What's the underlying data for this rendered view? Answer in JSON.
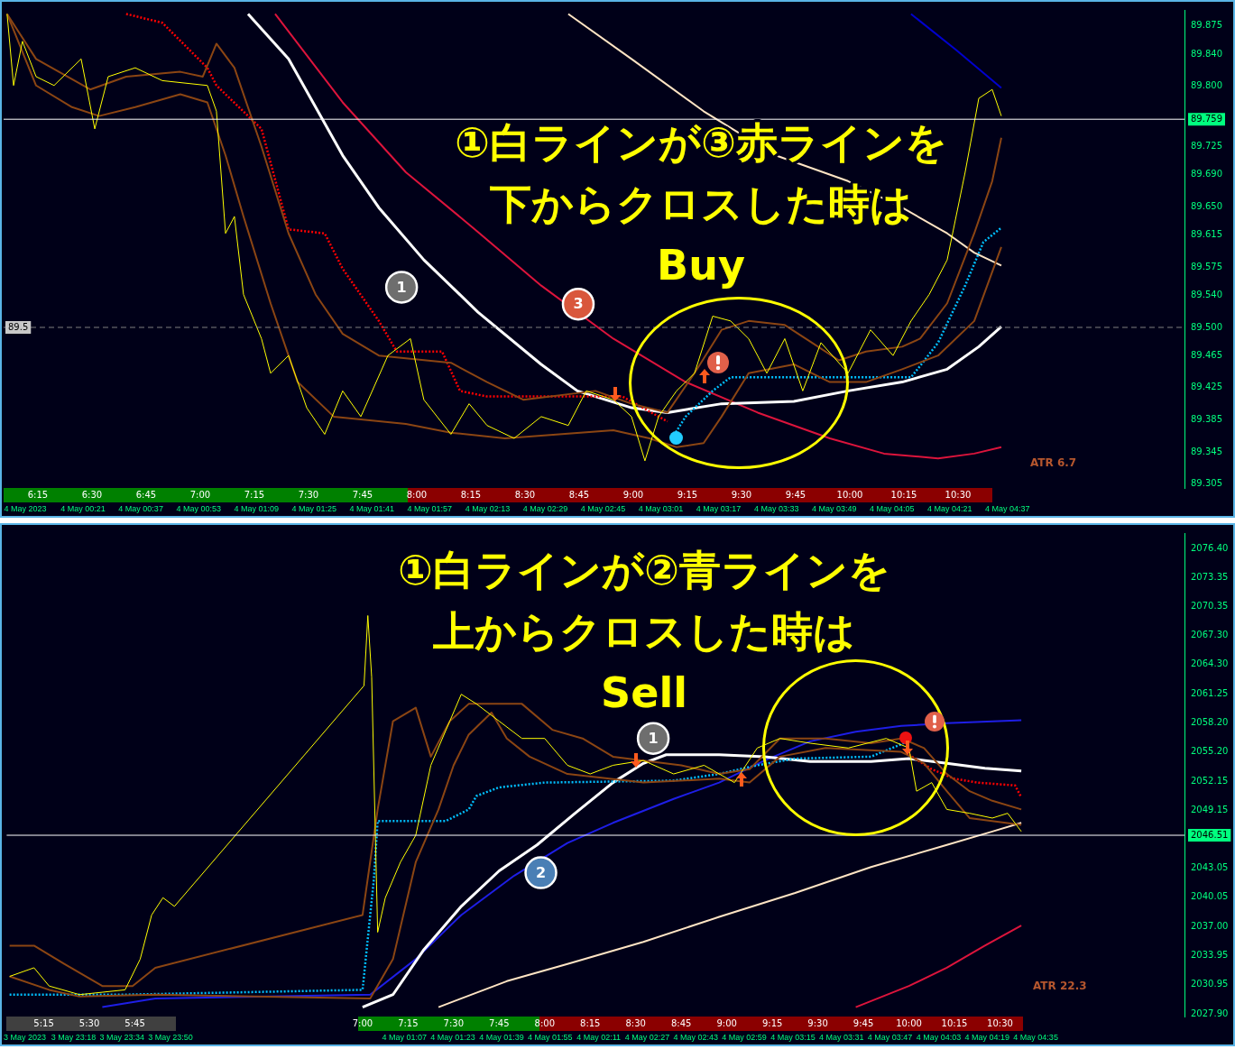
{
  "chart_data": [
    {
      "type": "line",
      "legend": false,
      "grid": false,
      "xlim": [
        6.092,
        11.546
      ],
      "xticks": [
        {
          "value": 6.25,
          "label": "6:15"
        },
        {
          "value": 6.5,
          "label": "6:30"
        },
        {
          "value": 6.75,
          "label": "6:45"
        },
        {
          "value": 7,
          "label": "7:00"
        },
        {
          "value": 7.25,
          "label": "7:15"
        },
        {
          "value": 7.5,
          "label": "7:30"
        },
        {
          "value": 7.75,
          "label": "7:45"
        },
        {
          "value": 8,
          "label": "8:00"
        },
        {
          "value": 8.25,
          "label": "8:15"
        },
        {
          "value": 8.5,
          "label": "8:30"
        },
        {
          "value": 8.75,
          "label": "8:45"
        },
        {
          "value": 9,
          "label": "9:00"
        },
        {
          "value": 9.25,
          "label": "9:15"
        },
        {
          "value": 9.5,
          "label": "9:30"
        },
        {
          "value": 9.75,
          "label": "9:45"
        },
        {
          "value": 10,
          "label": "10:00"
        },
        {
          "value": 10.25,
          "label": "10:15"
        },
        {
          "value": 10.5,
          "label": "10:30"
        }
      ],
      "x2lim": [
        "2023-05-03T23:59",
        "2023-05-04T05:26"
      ],
      "x2ticks": [
        {
          "value": "2023-05-04T00:05",
          "label": "4 May 2023"
        },
        {
          "value": "2023-05-04T00:21",
          "label": "4 May 00:21"
        },
        {
          "value": "2023-05-04T00:37",
          "label": "4 May 00:37"
        },
        {
          "value": "2023-05-04T00:53",
          "label": "4 May 00:53"
        },
        {
          "value": "2023-05-04T01:09",
          "label": "4 May 01:09"
        },
        {
          "value": "2023-05-04T01:25",
          "label": "4 May 01:25"
        },
        {
          "value": "2023-05-04T01:41",
          "label": "4 May 01:41"
        },
        {
          "value": "2023-05-04T01:57",
          "label": "4 May 01:57"
        },
        {
          "value": "2023-05-04T02:13",
          "label": "4 May 02:13"
        },
        {
          "value": "2023-05-04T02:29",
          "label": "4 May 02:29"
        },
        {
          "value": "2023-05-04T02:45",
          "label": "4 May 02:45"
        },
        {
          "value": "2023-05-04T03:01",
          "label": "4 May 03:01"
        },
        {
          "value": "2023-05-04T03:17",
          "label": "4 May 03:17"
        },
        {
          "value": "2023-05-04T03:33",
          "label": "4 May 03:33"
        },
        {
          "value": "2023-05-04T03:49",
          "label": "4 May 03:49"
        },
        {
          "value": "2023-05-04T04:05",
          "label": "4 May 04:05"
        },
        {
          "value": "2023-05-04T04:21",
          "label": "4 May 04:21"
        },
        {
          "value": "2023-05-04T04:37",
          "label": "4 May 04:37"
        }
      ],
      "ylim": [
        89.3,
        89.895
      ],
      "yticks": [
        89.875,
        {
          "value": 89.84,
          "label": "89.840"
        },
        {
          "value": 89.8,
          "label": "89.800"
        },
        89.725,
        {
          "value": 89.69,
          "label": "89.690"
        },
        {
          "value": 89.65,
          "label": "89.650"
        },
        89.615,
        89.575,
        {
          "value": 89.54,
          "label": "89.540"
        },
        {
          "value": 89.5,
          "label": "89.500"
        },
        89.465,
        89.425,
        89.385,
        89.345,
        89.305
      ],
      "ref_lines": [
        {
          "axis": "y",
          "value": 89.759,
          "label": "89.759",
          "color": "#ffffff",
          "line_style": "solid"
        },
        {
          "axis": "y",
          "value": 89.5,
          "label": "89.5",
          "color": "#808080",
          "line_style": "dashed"
        }
      ],
      "annotations": [
        "①白ラインが③赤ラインを",
        "下からクロスした時は",
        "Buy",
        {
          "text": "1",
          "x": 7.93,
          "y": 89.55
        },
        {
          "text": "3",
          "x": 8.746,
          "y": 89.529
        },
        "ATR 6.7"
      ],
      "series": [
        {
          "color": "#ffff00",
          "x": [
            6.108,
            6.138,
            6.179,
            6.242,
            6.325,
            6.45,
            6.513,
            6.575,
            6.7,
            6.825,
            7.033,
            7.075,
            7.117,
            7.158,
            7.2,
            7.283,
            7.325,
            7.408,
            7.492,
            7.575,
            7.658,
            7.742,
            7.867,
            7.971,
            8.033,
            8.158,
            8.242,
            8.325,
            8.45,
            8.575,
            8.7,
            8.783,
            8.908,
            8.992,
            9.054,
            9.117,
            9.2,
            9.283,
            9.367,
            9.45,
            9.533,
            9.617,
            9.7,
            9.783,
            9.867,
            9.992,
            10.096,
            10.2,
            10.283,
            10.367,
            10.45,
            10.533,
            10.596,
            10.658,
            10.7
          ],
          "values": [
            89.89,
            89.801,
            89.856,
            89.812,
            89.801,
            89.834,
            89.747,
            89.812,
            89.823,
            89.807,
            89.801,
            89.769,
            89.617,
            89.638,
            89.541,
            89.486,
            89.443,
            89.465,
            89.4,
            89.367,
            89.421,
            89.389,
            89.465,
            89.486,
            89.41,
            89.367,
            89.405,
            89.378,
            89.362,
            89.389,
            89.378,
            89.421,
            89.41,
            89.389,
            89.334,
            89.389,
            89.421,
            89.443,
            89.514,
            89.508,
            89.486,
            89.443,
            89.486,
            89.421,
            89.481,
            89.443,
            89.497,
            89.465,
            89.508,
            89.541,
            89.584,
            89.693,
            89.785,
            89.796,
            89.763
          ]
        },
        {
          "color": "#8b4513",
          "x": [
            6.108,
            6.242,
            6.492,
            6.658,
            6.908,
            7.012,
            7.075,
            7.158,
            7.283,
            7.408,
            7.533,
            7.658,
            7.825,
            8.158,
            8.325,
            8.492,
            8.825,
            8.992,
            9.158,
            9.283,
            9.408,
            9.533,
            9.7,
            9.825,
            9.95,
            10.075,
            10.242,
            10.325,
            10.45,
            10.575,
            10.658,
            10.7
          ],
          "values": [
            89.89,
            89.834,
            89.796,
            89.812,
            89.818,
            89.812,
            89.853,
            89.823,
            89.725,
            89.617,
            89.541,
            89.492,
            89.465,
            89.456,
            89.432,
            89.41,
            89.421,
            89.405,
            89.394,
            89.443,
            89.497,
            89.508,
            89.503,
            89.481,
            89.459,
            89.47,
            89.476,
            89.486,
            89.53,
            89.617,
            89.682,
            89.736
          ]
        },
        {
          "color": "#8b4513",
          "x": [
            6.108,
            6.242,
            6.408,
            6.533,
            6.7,
            6.908,
            7.033,
            7.117,
            7.2,
            7.325,
            7.45,
            7.617,
            7.95,
            8.158,
            8.408,
            8.658,
            8.908,
            9.075,
            9.2,
            9.325,
            9.408,
            9.533,
            9.742,
            9.908,
            10.075,
            10.242,
            10.408,
            10.575,
            10.7
          ],
          "values": [
            89.89,
            89.801,
            89.774,
            89.763,
            89.774,
            89.79,
            89.78,
            89.714,
            89.638,
            89.53,
            89.432,
            89.389,
            89.38,
            89.369,
            89.362,
            89.367,
            89.372,
            89.362,
            89.351,
            89.356,
            89.389,
            89.443,
            89.454,
            89.432,
            89.432,
            89.448,
            89.465,
            89.508,
            89.6
          ]
        },
        {
          "color": "#00bfff",
          "line_style": "dotted",
          "x": [
            9.179,
            9.242,
            9.367,
            9.45,
            10.283,
            10.325,
            10.408,
            10.533,
            10.617,
            10.7
          ],
          "values": [
            89.362,
            89.389,
            89.421,
            89.438,
            89.438,
            89.452,
            89.481,
            89.552,
            89.606,
            89.624
          ]
        },
        {
          "color": "#ff0000",
          "line_style": "dotted",
          "x": [
            6.658,
            6.825,
            7.033,
            7.075,
            7.283,
            7.408,
            7.575,
            7.658,
            7.825,
            7.908,
            8.117,
            8.2,
            8.325,
            8.95,
            9.158
          ],
          "values": [
            89.89,
            89.879,
            89.823,
            89.801,
            89.747,
            89.622,
            89.617,
            89.573,
            89.508,
            89.47,
            89.47,
            89.421,
            89.414,
            89.414,
            89.383
          ]
        },
        {
          "color": "#ffffff",
          "x": [
            7.221,
            7.408,
            7.658,
            7.825,
            8.033,
            8.283,
            8.575,
            8.742,
            8.992,
            9.158,
            9.408,
            9.742,
            9.992,
            10.242,
            10.45,
            10.596,
            10.7
          ],
          "values": [
            89.89,
            89.834,
            89.714,
            89.649,
            89.584,
            89.519,
            89.454,
            89.421,
            89.4,
            89.394,
            89.405,
            89.408,
            89.421,
            89.432,
            89.448,
            89.476,
            89.501
          ]
        },
        {
          "color": "#dc143c",
          "x": [
            7.346,
            7.658,
            7.95,
            8.242,
            8.575,
            8.908,
            9.242,
            9.575,
            9.908,
            10.158,
            10.408,
            10.575,
            10.7
          ],
          "values": [
            89.89,
            89.78,
            89.693,
            89.628,
            89.552,
            89.486,
            89.432,
            89.394,
            89.362,
            89.343,
            89.337,
            89.343,
            89.351
          ]
        },
        {
          "color": "#ffe4c4",
          "x": [
            8.7,
            8.992,
            9.325,
            9.658,
            9.992,
            10.242,
            10.45,
            10.575,
            10.7
          ],
          "values": [
            89.89,
            89.834,
            89.769,
            89.714,
            89.682,
            89.649,
            89.617,
            89.593,
            89.577
          ]
        },
        {
          "color": "#0000cd",
          "x": [
            10.283,
            10.492,
            10.7
          ],
          "values": [
            89.89,
            89.845,
            89.798
          ]
        }
      ]
    },
    {
      "type": "line",
      "legend": false,
      "grid": false,
      "xlim": [
        5.046,
        11.513
      ],
      "xticks": [
        {
          "value": 5.25,
          "label": "5:15"
        },
        {
          "value": 5.5,
          "label": "5:30"
        },
        {
          "value": 5.75,
          "label": "5:45"
        },
        {
          "value": 7,
          "label": "7:00"
        },
        {
          "value": 7.25,
          "label": "7:15"
        },
        {
          "value": 7.5,
          "label": "7:30"
        },
        {
          "value": 7.75,
          "label": "7:45"
        },
        {
          "value": 8,
          "label": "8:00"
        },
        {
          "value": 8.25,
          "label": "8:15"
        },
        {
          "value": 8.5,
          "label": "8:30"
        },
        {
          "value": 8.75,
          "label": "8:45"
        },
        {
          "value": 9,
          "label": "9:00"
        },
        {
          "value": 9.25,
          "label": "9:15"
        },
        {
          "value": 9.5,
          "label": "9:30"
        },
        {
          "value": 9.75,
          "label": "9:45"
        },
        {
          "value": 10,
          "label": "10:00"
        },
        {
          "value": 10.25,
          "label": "10:15"
        },
        {
          "value": 10.5,
          "label": "10:30"
        }
      ],
      "x2lim": [
        "2023-05-03T22:56",
        "2023-05-04T05:24"
      ],
      "x2ticks": [
        {
          "value": "2023-05-03T23:02",
          "label": "3 May 2023"
        },
        {
          "value": "2023-05-03T23:18",
          "label": "3 May 23:18"
        },
        {
          "value": "2023-05-03T23:34",
          "label": "3 May 23:34"
        },
        {
          "value": "2023-05-03T23:50",
          "label": "3 May 23:50"
        },
        {
          "value": "2023-05-04T01:07",
          "label": "4 May 01:07"
        },
        {
          "value": "2023-05-04T01:23",
          "label": "4 May 01:23"
        },
        {
          "value": "2023-05-04T01:39",
          "label": "4 May 01:39"
        },
        {
          "value": "2023-05-04T01:55",
          "label": "4 May 01:55"
        },
        {
          "value": "2023-05-04T02:11",
          "label": "4 May 02:11"
        },
        {
          "value": "2023-05-04T02:27",
          "label": "4 May 02:27"
        },
        {
          "value": "2023-05-04T02:43",
          "label": "4 May 02:43"
        },
        {
          "value": "2023-05-04T02:59",
          "label": "4 May 02:59"
        },
        {
          "value": "2023-05-04T03:15",
          "label": "4 May 03:15"
        },
        {
          "value": "2023-05-04T03:31",
          "label": "4 May 03:31"
        },
        {
          "value": "2023-05-04T03:47",
          "label": "4 May 03:47"
        },
        {
          "value": "2023-05-04T04:03",
          "label": "4 May 04:03"
        },
        {
          "value": "2023-05-04T04:19",
          "label": "4 May 04:19"
        },
        {
          "value": "2023-05-04T04:35",
          "label": "4 May 04:35"
        }
      ],
      "ylim": [
        2027.6,
        2078.0
      ],
      "yticks": [
        {
          "value": 2076.4,
          "label": "2076.40"
        },
        2073.35,
        2070.35,
        {
          "value": 2067.3,
          "label": "2067.30"
        },
        {
          "value": 2064.3,
          "label": "2064.30"
        },
        2061.25,
        {
          "value": 2058.2,
          "label": "2058.20"
        },
        {
          "value": 2055.2,
          "label": "2055.20"
        },
        2052.15,
        2049.15,
        2043.05,
        2040.05,
        {
          "value": 2037,
          "label": "2037.00"
        },
        2033.95,
        2030.95,
        {
          "value": 2027.9,
          "label": "2027.90"
        }
      ],
      "ref_lines": [
        {
          "axis": "y",
          "value": 2046.51,
          "label": "2046.51",
          "color": "#ffffff",
          "line_style": "solid"
        }
      ],
      "annotations": [
        "①白ラインが②青ラインを",
        "上からクロスした時は",
        "Sell",
        {
          "text": "1",
          "x": 8.596,
          "y": 2056.6
        },
        {
          "text": "2",
          "x": 7.979,
          "y": 2042.6
        },
        "ATR 22.3"
      ],
      "series": [
        {
          "color": "#ffff00",
          "x": [
            5.062,
            5.196,
            5.279,
            5.446,
            5.696,
            5.779,
            5.842,
            5.904,
            5.967,
            7.008,
            7.029,
            7.05,
            7.083,
            7.125,
            7.208,
            7.292,
            7.375,
            7.479,
            7.542,
            7.625,
            7.75,
            7.875,
            8.0,
            8.125,
            8.25,
            8.375,
            8.542,
            8.708,
            8.875,
            9.042,
            9.167,
            9.292,
            9.458,
            9.667,
            9.875,
            10.0,
            10.042,
            10.125,
            10.208,
            10.333,
            10.458,
            10.542,
            10.617
          ],
          "values": [
            2031.8,
            2032.7,
            2030.8,
            2029.9,
            2030.4,
            2033.6,
            2038.2,
            2040.0,
            2039.1,
            2062.1,
            2069.4,
            2063.0,
            2036.4,
            2040.0,
            2043.7,
            2046.5,
            2053.8,
            2058.4,
            2061.2,
            2060.2,
            2058.4,
            2056.6,
            2056.6,
            2053.8,
            2052.9,
            2053.8,
            2054.3,
            2052.9,
            2053.8,
            2052.0,
            2055.6,
            2056.6,
            2056.1,
            2055.6,
            2056.6,
            2055.6,
            2051.1,
            2052.0,
            2049.2,
            2048.8,
            2048.3,
            2048.8,
            2046.9
          ]
        },
        {
          "color": "#8b4513",
          "x": [
            5.062,
            5.196,
            5.362,
            5.571,
            5.737,
            5.862,
            7.0,
            7.083,
            7.167,
            7.292,
            7.375,
            7.479,
            7.583,
            7.875,
            8.042,
            8.208,
            8.375,
            8.75,
            8.958,
            9.125,
            9.292,
            9.542,
            9.792,
            9.958,
            10.083,
            10.208,
            10.333,
            10.458,
            10.617
          ],
          "values": [
            2035.0,
            2035.0,
            2033.1,
            2030.8,
            2030.8,
            2032.7,
            2038.2,
            2049.2,
            2058.4,
            2059.8,
            2054.7,
            2058.4,
            2060.2,
            2060.2,
            2057.5,
            2056.6,
            2054.7,
            2053.8,
            2052.9,
            2053.4,
            2056.6,
            2056.6,
            2056.1,
            2056.6,
            2055.6,
            2052.9,
            2051.1,
            2050.1,
            2049.2
          ]
        },
        {
          "color": "#8b4513",
          "x": [
            5.062,
            5.279,
            5.446,
            5.862,
            7.042,
            7.167,
            7.292,
            7.417,
            7.5,
            7.583,
            7.708,
            7.792,
            7.917,
            8.125,
            8.542,
            8.958,
            9.125,
            9.292,
            9.542,
            9.958,
            10.083,
            10.208,
            10.333,
            10.617
          ],
          "values": [
            2031.8,
            2030.4,
            2029.7,
            2029.9,
            2029.5,
            2033.6,
            2043.7,
            2049.2,
            2053.8,
            2057.0,
            2059.3,
            2056.6,
            2054.7,
            2052.9,
            2052.0,
            2052.4,
            2052.0,
            2054.7,
            2055.6,
            2055.2,
            2054.0,
            2051.1,
            2048.3,
            2047.6
          ]
        },
        {
          "color": "#00bfff",
          "line_style": "dotted",
          "x": [
            5.062,
            5.696,
            7.0,
            7.062,
            7.083,
            7.458,
            7.583,
            7.625,
            7.75,
            8.0,
            8.708,
            8.958,
            9.167,
            9.375,
            9.792,
            9.958,
            10.0
          ],
          "values": [
            2029.9,
            2029.9,
            2030.4,
            2041.9,
            2048.0,
            2048.0,
            2049.2,
            2050.6,
            2051.5,
            2052.0,
            2052.2,
            2052.9,
            2053.8,
            2054.5,
            2054.7,
            2056.0,
            2056.4
          ]
        },
        {
          "color": "#ff0000",
          "line_style": "dotted",
          "x": [
            10.0,
            10.125,
            10.25,
            10.375,
            10.583,
            10.613
          ],
          "values": [
            2054.9,
            2053.4,
            2052.4,
            2052.0,
            2051.7,
            2050.6
          ]
        },
        {
          "color": "#ffffff",
          "x": [
            7.0,
            7.167,
            7.333,
            7.542,
            7.75,
            7.958,
            8.167,
            8.375,
            8.542,
            8.667,
            8.958,
            9.208,
            9.458,
            9.792,
            10.0,
            10.208,
            10.417,
            10.617
          ],
          "values": [
            2028.6,
            2029.9,
            2034.5,
            2039.1,
            2042.8,
            2045.5,
            2048.8,
            2052.0,
            2054.0,
            2054.9,
            2054.9,
            2054.7,
            2054.2,
            2054.2,
            2054.5,
            2054.0,
            2053.5,
            2053.2
          ]
        },
        {
          "color": "#dc143c",
          "x": [
            9.708,
            10.0,
            10.208,
            10.417,
            10.617
          ],
          "values": [
            2028.6,
            2030.8,
            2032.7,
            2035.0,
            2037.1
          ]
        },
        {
          "color": "#ffe4c4",
          "x": [
            7.417,
            7.792,
            8.125,
            8.542,
            8.958,
            9.375,
            9.792,
            10.208,
            10.458,
            10.617
          ],
          "values": [
            2028.6,
            2031.3,
            2033.1,
            2035.4,
            2038.0,
            2040.5,
            2043.2,
            2045.5,
            2046.9,
            2047.8
          ]
        },
        {
          "color": "#1e1ee6",
          "x": [
            5.571,
            5.862,
            7.042,
            7.292,
            7.542,
            7.833,
            8.125,
            8.375,
            8.708,
            8.958,
            9.208,
            9.458,
            9.708,
            9.958,
            10.208,
            10.617
          ],
          "values": [
            2028.6,
            2029.5,
            2029.9,
            2033.6,
            2038.2,
            2042.3,
            2045.7,
            2047.8,
            2050.3,
            2052.0,
            2054.3,
            2056.3,
            2057.3,
            2057.9,
            2058.2,
            2058.5
          ]
        }
      ]
    }
  ]
}
